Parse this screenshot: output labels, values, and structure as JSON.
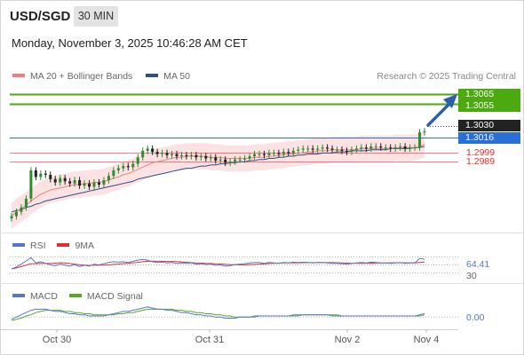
{
  "header": {
    "symbol": "USD/SGD",
    "timeframe": "30 MIN",
    "datetime": "Monday, November 3, 2025 10:46:28 AM CET"
  },
  "legend": {
    "ma20_label": "MA 20 + Bollinger Bands",
    "ma50_label": "MA 50",
    "ma20_color": "#f08080",
    "ma50_color": "#2b4f8c",
    "rsi_label": "RSI",
    "rsi_9ma_label": "9MA",
    "rsi_color": "#5577cc",
    "rsi_9ma_color": "#e03030",
    "macd_label": "MACD",
    "macd_signal_label": "MACD Signal",
    "macd_color": "#5577cc",
    "macd_signal_color": "#55aa22"
  },
  "research_note": "Research © 2025 Trading Central",
  "levels": {
    "target_high": "1.3065",
    "target_low": "1.3055",
    "current": "1.3030",
    "pivot": "1.3016",
    "support1": "1.2999",
    "support2": "1.2989",
    "green_color": "#4caa10",
    "blue_color": "#2a6fd8",
    "red_color": "#e05060",
    "price_tag_color": "#222222"
  },
  "rsi_panel": {
    "value": "64.41",
    "lower": "30"
  },
  "macd_panel": {
    "value": "0.00"
  },
  "x_axis": {
    "labels": [
      "Oct 30",
      "Oct 31",
      "Nov 2",
      "Nov 4"
    ]
  },
  "chart_data": {
    "type": "candlestick",
    "symbol": "USD/SGD",
    "interval": "30 MIN",
    "close": [
      1.2952,
      1.2956,
      1.296,
      1.2968,
      1.2994,
      1.2988,
      1.2991,
      1.299,
      1.2986,
      1.2983,
      1.2987,
      1.2984,
      1.2982,
      1.2985,
      1.298,
      1.2982,
      1.2979,
      1.2983,
      1.2981,
      1.2985,
      1.2989,
      1.2994,
      1.2996,
      1.2998,
      1.2997,
      1.3,
      1.3006,
      1.3012,
      1.3014,
      1.3011,
      1.3009,
      1.301,
      1.3008,
      1.3009,
      1.3007,
      1.3008,
      1.3007,
      1.3008,
      1.3006,
      1.3007,
      1.3005,
      1.3006,
      1.3003,
      1.3004,
      1.3001,
      1.3002,
      1.3004,
      1.3004,
      1.3005,
      1.3007,
      1.3009,
      1.3009,
      1.3008,
      1.301,
      1.301,
      1.3009,
      1.3011,
      1.301,
      1.3012,
      1.3013,
      1.3014,
      1.3014,
      1.3013,
      1.3014,
      1.3015,
      1.3014,
      1.3013,
      1.3013,
      1.3012,
      1.3011,
      1.3013,
      1.3014,
      1.3015,
      1.3014,
      1.3016,
      1.3016,
      1.3015,
      1.3015,
      1.3014,
      1.3015,
      1.3016,
      1.3014,
      1.3015,
      1.3015,
      1.3029,
      1.303
    ],
    "ma20": [
      1.2952,
      1.2956,
      1.2959,
      1.2962,
      1.2966,
      1.2969,
      1.2972,
      1.2974,
      1.2976,
      1.2977,
      1.2978,
      1.2979,
      1.298,
      1.2981,
      1.2981,
      1.2982,
      1.2982,
      1.2983,
      1.2983,
      1.2984,
      1.2985,
      1.2987,
      1.2988,
      1.299,
      1.2991,
      1.2993,
      1.2995,
      1.2997,
      1.2999,
      1.3001,
      1.3002,
      1.3003,
      1.3004,
      1.3005,
      1.3006,
      1.3006,
      1.3007,
      1.3007,
      1.3007,
      1.3007,
      1.3007,
      1.3006,
      1.3006,
      1.3006,
      1.3005,
      1.3005,
      1.3005,
      1.3005,
      1.3005,
      1.3005,
      1.3006,
      1.3006,
      1.3006,
      1.3007,
      1.3007,
      1.3008,
      1.3008,
      1.3009,
      1.3009,
      1.301,
      1.301,
      1.3011,
      1.3011,
      1.3012,
      1.3012,
      1.3012,
      1.3013,
      1.3013,
      1.3013,
      1.3013,
      1.3013,
      1.3013,
      1.3014,
      1.3014,
      1.3014,
      1.3014,
      1.3014,
      1.3014,
      1.3014,
      1.3015,
      1.3015,
      1.3015,
      1.3015,
      1.3015,
      1.3016,
      1.3018
    ],
    "ma50": [
      1.2956,
      1.2957,
      1.2958,
      1.296,
      1.2961,
      1.2963,
      1.2964,
      1.2966,
      1.2967,
      1.2968,
      1.2969,
      1.297,
      1.2971,
      1.2972,
      1.2973,
      1.2974,
      1.2975,
      1.2976,
      1.2977,
      1.2978,
      1.2979,
      1.298,
      1.2981,
      1.2982,
      1.2983,
      1.2984,
      1.2986,
      1.2987,
      1.2988,
      1.2989,
      1.299,
      1.2991,
      1.2992,
      1.2993,
      1.2994,
      1.2995,
      1.2996,
      1.2996,
      1.2997,
      1.2998,
      1.2998,
      1.2999,
      1.2999,
      1.3,
      1.3,
      1.3001,
      1.3001,
      1.3002,
      1.3002,
      1.3003,
      1.3003,
      1.3004,
      1.3004,
      1.3005,
      1.3005,
      1.3006,
      1.3006,
      1.3007,
      1.3007,
      1.3008,
      1.3008,
      1.3009,
      1.3009,
      1.3009,
      1.301,
      1.301,
      1.301,
      1.3011,
      1.3011,
      1.3011,
      1.3012,
      1.3012,
      1.3012,
      1.3012,
      1.3013,
      1.3013,
      1.3013,
      1.3013,
      1.3014,
      1.3014,
      1.3014,
      1.3014,
      1.3014,
      1.3015,
      1.3015,
      1.3016
    ],
    "bollinger_width": 0.0012,
    "levels": [
      1.3065,
      1.3055,
      1.3016,
      1.2999,
      1.2989
    ],
    "y_range": [
      1.2937,
      1.3073
    ],
    "rsi": [
      40,
      45,
      52,
      60,
      68,
      55,
      58,
      54,
      50,
      48,
      52,
      49,
      47,
      51,
      46,
      49,
      47,
      52,
      50,
      53,
      56,
      58,
      57,
      58,
      56,
      59,
      62,
      64,
      62,
      58,
      56,
      57,
      55,
      56,
      54,
      55,
      54,
      55,
      52,
      53,
      51,
      52,
      49,
      50,
      47,
      48,
      51,
      52,
      53,
      55,
      56,
      56,
      54,
      56,
      55,
      54,
      56,
      55,
      57,
      56,
      57,
      56,
      55,
      56,
      56,
      55,
      54,
      54,
      53,
      52,
      54,
      55,
      56,
      55,
      57,
      56,
      55,
      55,
      54,
      55,
      56,
      54,
      55,
      55,
      66,
      64.41
    ],
    "rsi_range": [
      20,
      80
    ],
    "macd": [
      -0.0002,
      0.0,
      0.0002,
      0.0004,
      0.0006,
      0.0007,
      0.0007,
      0.0007,
      0.0006,
      0.0005,
      0.0005,
      0.0004,
      0.0003,
      0.0003,
      0.0002,
      0.0002,
      0.0001,
      0.0001,
      0.0001,
      0.0001,
      0.0002,
      0.0003,
      0.0004,
      0.0005,
      0.0005,
      0.0006,
      0.0007,
      0.0008,
      0.0009,
      0.0008,
      0.0007,
      0.0007,
      0.0006,
      0.0006,
      0.0005,
      0.0004,
      0.0004,
      0.0003,
      0.0002,
      0.0002,
      0.0001,
      0.0001,
      0.0,
      0.0,
      -0.0001,
      -0.0001,
      -0.0001,
      0.0,
      0.0,
      0.0,
      0.0001,
      0.0001,
      0.0001,
      0.0001,
      0.0001,
      0.0001,
      0.0001,
      0.0001,
      0.0002,
      0.0002,
      0.0002,
      0.0002,
      0.0002,
      0.0002,
      0.0002,
      0.0002,
      0.0001,
      0.0001,
      0.0001,
      0.0001,
      0.0001,
      0.0001,
      0.0001,
      0.0001,
      0.0001,
      0.0001,
      0.0001,
      0.0001,
      0.0001,
      0.0001,
      0.0001,
      0.0001,
      0.0001,
      0.0001,
      0.0002,
      0.0003
    ],
    "macd_signal": [
      -0.0003,
      -0.0002,
      -0.0001,
      0.0001,
      0.0002,
      0.0004,
      0.0005,
      0.0006,
      0.0006,
      0.0006,
      0.0006,
      0.0005,
      0.0005,
      0.0004,
      0.0004,
      0.0003,
      0.0003,
      0.0002,
      0.0002,
      0.0002,
      0.0002,
      0.0002,
      0.0003,
      0.0003,
      0.0004,
      0.0004,
      0.0005,
      0.0006,
      0.0007,
      0.0007,
      0.0007,
      0.0007,
      0.0007,
      0.0007,
      0.0006,
      0.0006,
      0.0005,
      0.0005,
      0.0004,
      0.0004,
      0.0003,
      0.0003,
      0.0002,
      0.0002,
      0.0001,
      0.0001,
      0.0,
      0.0,
      0.0,
      0.0,
      0.0,
      0.0001,
      0.0001,
      0.0001,
      0.0001,
      0.0001,
      0.0001,
      0.0001,
      0.0001,
      0.0001,
      0.0002,
      0.0002,
      0.0002,
      0.0002,
      0.0002,
      0.0002,
      0.0002,
      0.0002,
      0.0001,
      0.0001,
      0.0001,
      0.0001,
      0.0001,
      0.0001,
      0.0001,
      0.0001,
      0.0001,
      0.0001,
      0.0001,
      0.0001,
      0.0001,
      0.0001,
      0.0001,
      0.0001,
      0.0001,
      0.0002
    ],
    "macd_range": [
      -0.001,
      0.0012
    ],
    "x_labels": [
      "Oct 30",
      "Oct 31",
      "Nov 2",
      "Nov 4"
    ],
    "x_label_index": [
      12,
      45,
      70,
      84
    ]
  }
}
